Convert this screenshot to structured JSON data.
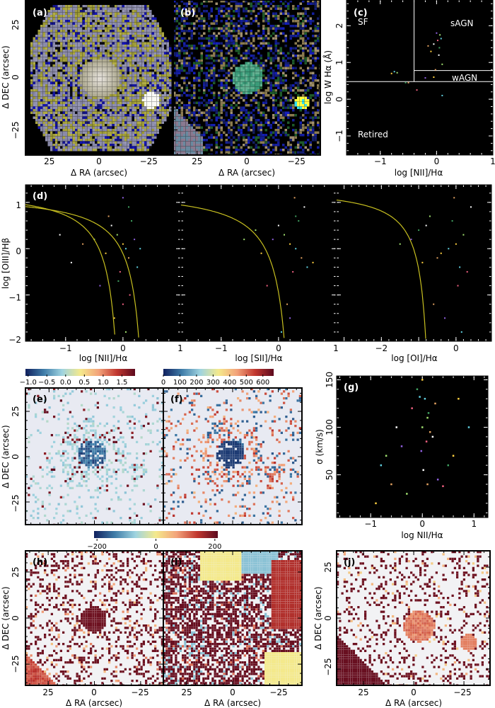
{
  "figure": {
    "panels": {
      "a": {
        "letter": "(a)",
        "xlabel": "Δ RA (arcsec)",
        "ylabel": "Δ DEC (arcsec)",
        "xlim": [
          37,
          -37
        ],
        "ylim": [
          -37,
          37
        ],
        "xticks": [
          "25",
          "0",
          "−25"
        ],
        "yticks": [
          "25",
          "0",
          "−25"
        ],
        "type": "rgb-image"
      },
      "b": {
        "letter": "(b)",
        "xlabel": "Δ RA (arcsec)",
        "xlim": [
          37,
          -37
        ],
        "ylim": [
          -37,
          37
        ],
        "xticks": [
          "25",
          "0",
          "−25"
        ],
        "type": "rgb-image"
      },
      "c": {
        "letter": "(c)",
        "xlabel": "log [NII]/Hα",
        "ylabel": "log W Hα (Å)",
        "xlim": [
          -1.6,
          1
        ],
        "ylim": [
          -1.52,
          2.7
        ],
        "xticks": [
          "−1",
          "0",
          "1"
        ],
        "yticks": [
          "2",
          "1",
          "0",
          "−1"
        ],
        "regions": {
          "sf": "SF",
          "sagn": "sAGN",
          "wagn": "wAGN",
          "retired": "Retired"
        },
        "dividers": {
          "nii_ha": -0.4,
          "w_ha_low": 0.48,
          "w_ha_agn": 0.78
        }
      },
      "d1": {
        "letter": "(d)",
        "xlabel": "log [NII]/Hα",
        "ylabel": "log [OIII]/Hβ",
        "xlim": [
          -1.7,
          1
        ],
        "ylim": [
          -2,
          1.38
        ],
        "xticks": [
          "−1",
          "0",
          "1"
        ],
        "yticks": [
          "1",
          "0",
          "−1",
          "−2"
        ]
      },
      "d2": {
        "xlabel": "log [SII]/Hα",
        "xlim": [
          -1.7,
          1
        ],
        "ylim": [
          -2,
          1.38
        ],
        "xticks": [
          "−1",
          "0",
          "1"
        ]
      },
      "d3": {
        "xlabel": "log [OI]/Hα",
        "xlim": [
          -3.2,
          0.95
        ],
        "ylim": [
          -2,
          1.38
        ],
        "xticks": [
          "−2",
          "0"
        ]
      },
      "e": {
        "letter": "(e)",
        "ylabel": "Δ DEC (arcsec)",
        "yticks": [
          "25",
          "0",
          "−25"
        ],
        "colorbar_ticks": [
          "−1.0",
          "−0.5",
          "0.0",
          "0.5",
          "1.0",
          "1.5"
        ],
        "colorbar_range": [
          -1.07,
          1.85
        ]
      },
      "f": {
        "letter": "(f)",
        "colorbar_ticks": [
          "0",
          "100",
          "200",
          "300",
          "400",
          "500",
          "600"
        ],
        "colorbar_range": [
          0,
          665
        ]
      },
      "g": {
        "letter": "(g)",
        "xlabel": "log NII/Hα",
        "ylabel": "σ (km/s)",
        "xlim": [
          -1.66,
          1.27
        ],
        "ylim": [
          5,
          154
        ],
        "xticks": [
          "−1",
          "0",
          "1"
        ],
        "yticks": [
          "150",
          "100",
          "50"
        ]
      },
      "h": {
        "letter": "(h)",
        "xlabel": "Δ RA (arcsec)",
        "ylabel": "Δ DEC (arcsec)",
        "xticks": [
          "25",
          "0",
          "−25"
        ],
        "yticks": [
          "25",
          "0",
          "−25"
        ]
      },
      "i": {
        "letter": "(i)",
        "xlabel": "Δ RA (arcsec)",
        "xticks": [
          "25",
          "0",
          "−25"
        ]
      },
      "j": {
        "letter": "(j)",
        "xlabel": "Δ RA (arcsec)",
        "ylabel": "Δ DEC (arcsec)",
        "xticks": [
          "25",
          "0",
          "−25"
        ],
        "yticks": [
          "25",
          "0",
          "−25"
        ]
      },
      "hij_colorbar": {
        "ticks": [
          "−200",
          "0",
          "200"
        ],
        "range": [
          -210,
          210
        ]
      }
    },
    "colors": {
      "axis_dark_bg": "#000000",
      "map_bg": "#e8eaf2",
      "demarcation_line": "#c8c020",
      "colormap": [
        "#10205e",
        "#3f7ca8",
        "#9ed3e0",
        "#f4e98c",
        "#f3a37a",
        "#c1372f",
        "#5c0a1e"
      ]
    }
  },
  "chart_data": [
    {
      "panel": "c",
      "type": "scatter",
      "x": [
        -0.8,
        -0.75,
        -0.7,
        -0.5,
        -0.05,
        0.0,
        0.02,
        0.05,
        -0.1,
        0.08,
        0.1,
        -0.02,
        0.04,
        -0.2,
        -0.35,
        -0.55,
        -0.05,
        0.1,
        0.06,
        -0.15
      ],
      "y": [
        0.7,
        0.75,
        0.72,
        0.45,
        1.5,
        1.8,
        1.6,
        1.4,
        1.3,
        1.65,
        0.95,
        0.8,
        1.2,
        0.58,
        0.25,
        0.45,
        0.6,
        0.1,
        1.75,
        1.45
      ]
    },
    {
      "panel": "d1",
      "type": "scatter",
      "x": [
        0,
        0.05,
        -0.1,
        0.1,
        -0.2,
        0.2,
        -0.05,
        0.15,
        -0.3,
        0.25,
        -0.5,
        -0.7,
        -0.9,
        -0.4,
        0.0,
        0.1,
        -0.15,
        0.3,
        0.05,
        -0.25,
        -1.1,
        0.0,
        0.12,
        -0.08
      ],
      "y": [
        0.1,
        0.0,
        0.3,
        -0.2,
        0.5,
        0.2,
        -0.5,
        0.6,
        -0.1,
        -0.4,
        0.2,
        0.1,
        -0.3,
        -0.8,
        -1.2,
        0.9,
        -1.5,
        0.0,
        -1.8,
        0.7,
        0.3,
        1.1,
        -1.0,
        -0.7
      ],
      "curves": {
        "kauffmann03": {
          "a": 0.61,
          "b": 0.05,
          "c": 1.3
        },
        "kewley01": {
          "a": 0.61,
          "b": 0.47,
          "c": 1.19
        }
      }
    },
    {
      "panel": "d2",
      "type": "scatter",
      "x": [
        0.2,
        0.3,
        0.1,
        0.4,
        0.0,
        -0.1,
        0.25,
        0.35,
        -0.3,
        0.5,
        -0.6,
        0.15,
        0.45,
        0.2,
        -0.2,
        0.3,
        0.6,
        0.05,
        -0.4,
        0.28
      ],
      "y": [
        0.1,
        0.0,
        0.3,
        -0.2,
        0.5,
        0.2,
        -0.5,
        0.6,
        -0.1,
        -0.4,
        0.2,
        -1.2,
        0.9,
        -1.5,
        -0.8,
        0.7,
        -0.3,
        -1.8,
        0.4,
        1.1
      ],
      "curves": {
        "kewley01": {
          "a": 0.72,
          "b": 0.32,
          "c": 1.3
        }
      }
    },
    {
      "panel": "d3",
      "type": "scatter",
      "x": [
        0,
        -0.2,
        0.2,
        -0.5,
        -0.8,
        -1.2,
        0.3,
        -0.1,
        -0.4,
        0.1,
        -1.5,
        -0.6,
        0.4,
        -0.3,
        0.05,
        -1.0,
        -0.9,
        0.15,
        -0.7,
        -0.05
      ],
      "y": [
        0.1,
        0.0,
        0.3,
        -0.2,
        0.5,
        0.2,
        -0.5,
        0.6,
        -0.1,
        -0.4,
        0.1,
        -1.2,
        0.9,
        -1.5,
        -0.8,
        0.4,
        -0.3,
        -1.8,
        0.7,
        1.1
      ],
      "curves": {
        "kewley06": {
          "a": 0.73,
          "b": -0.59,
          "c": 1.33
        }
      }
    },
    {
      "panel": "g",
      "type": "scatter",
      "x": [
        -0.9,
        -0.8,
        -0.7,
        -0.6,
        -0.5,
        -0.4,
        -0.2,
        -0.1,
        0.0,
        0.05,
        0.1,
        0.15,
        0.2,
        0.3,
        0.4,
        0.5,
        0.6,
        -0.05,
        0.0,
        0.1,
        0.02,
        -0.02,
        0.08,
        0.12,
        0.7,
        0.9,
        -0.3,
        0.25
      ],
      "y": [
        20,
        60,
        70,
        40,
        100,
        80,
        120,
        140,
        150,
        130,
        110,
        95,
        90,
        45,
        38,
        60,
        70,
        132,
        100,
        40,
        55,
        75,
        85,
        115,
        130,
        100,
        30,
        125
      ]
    }
  ]
}
